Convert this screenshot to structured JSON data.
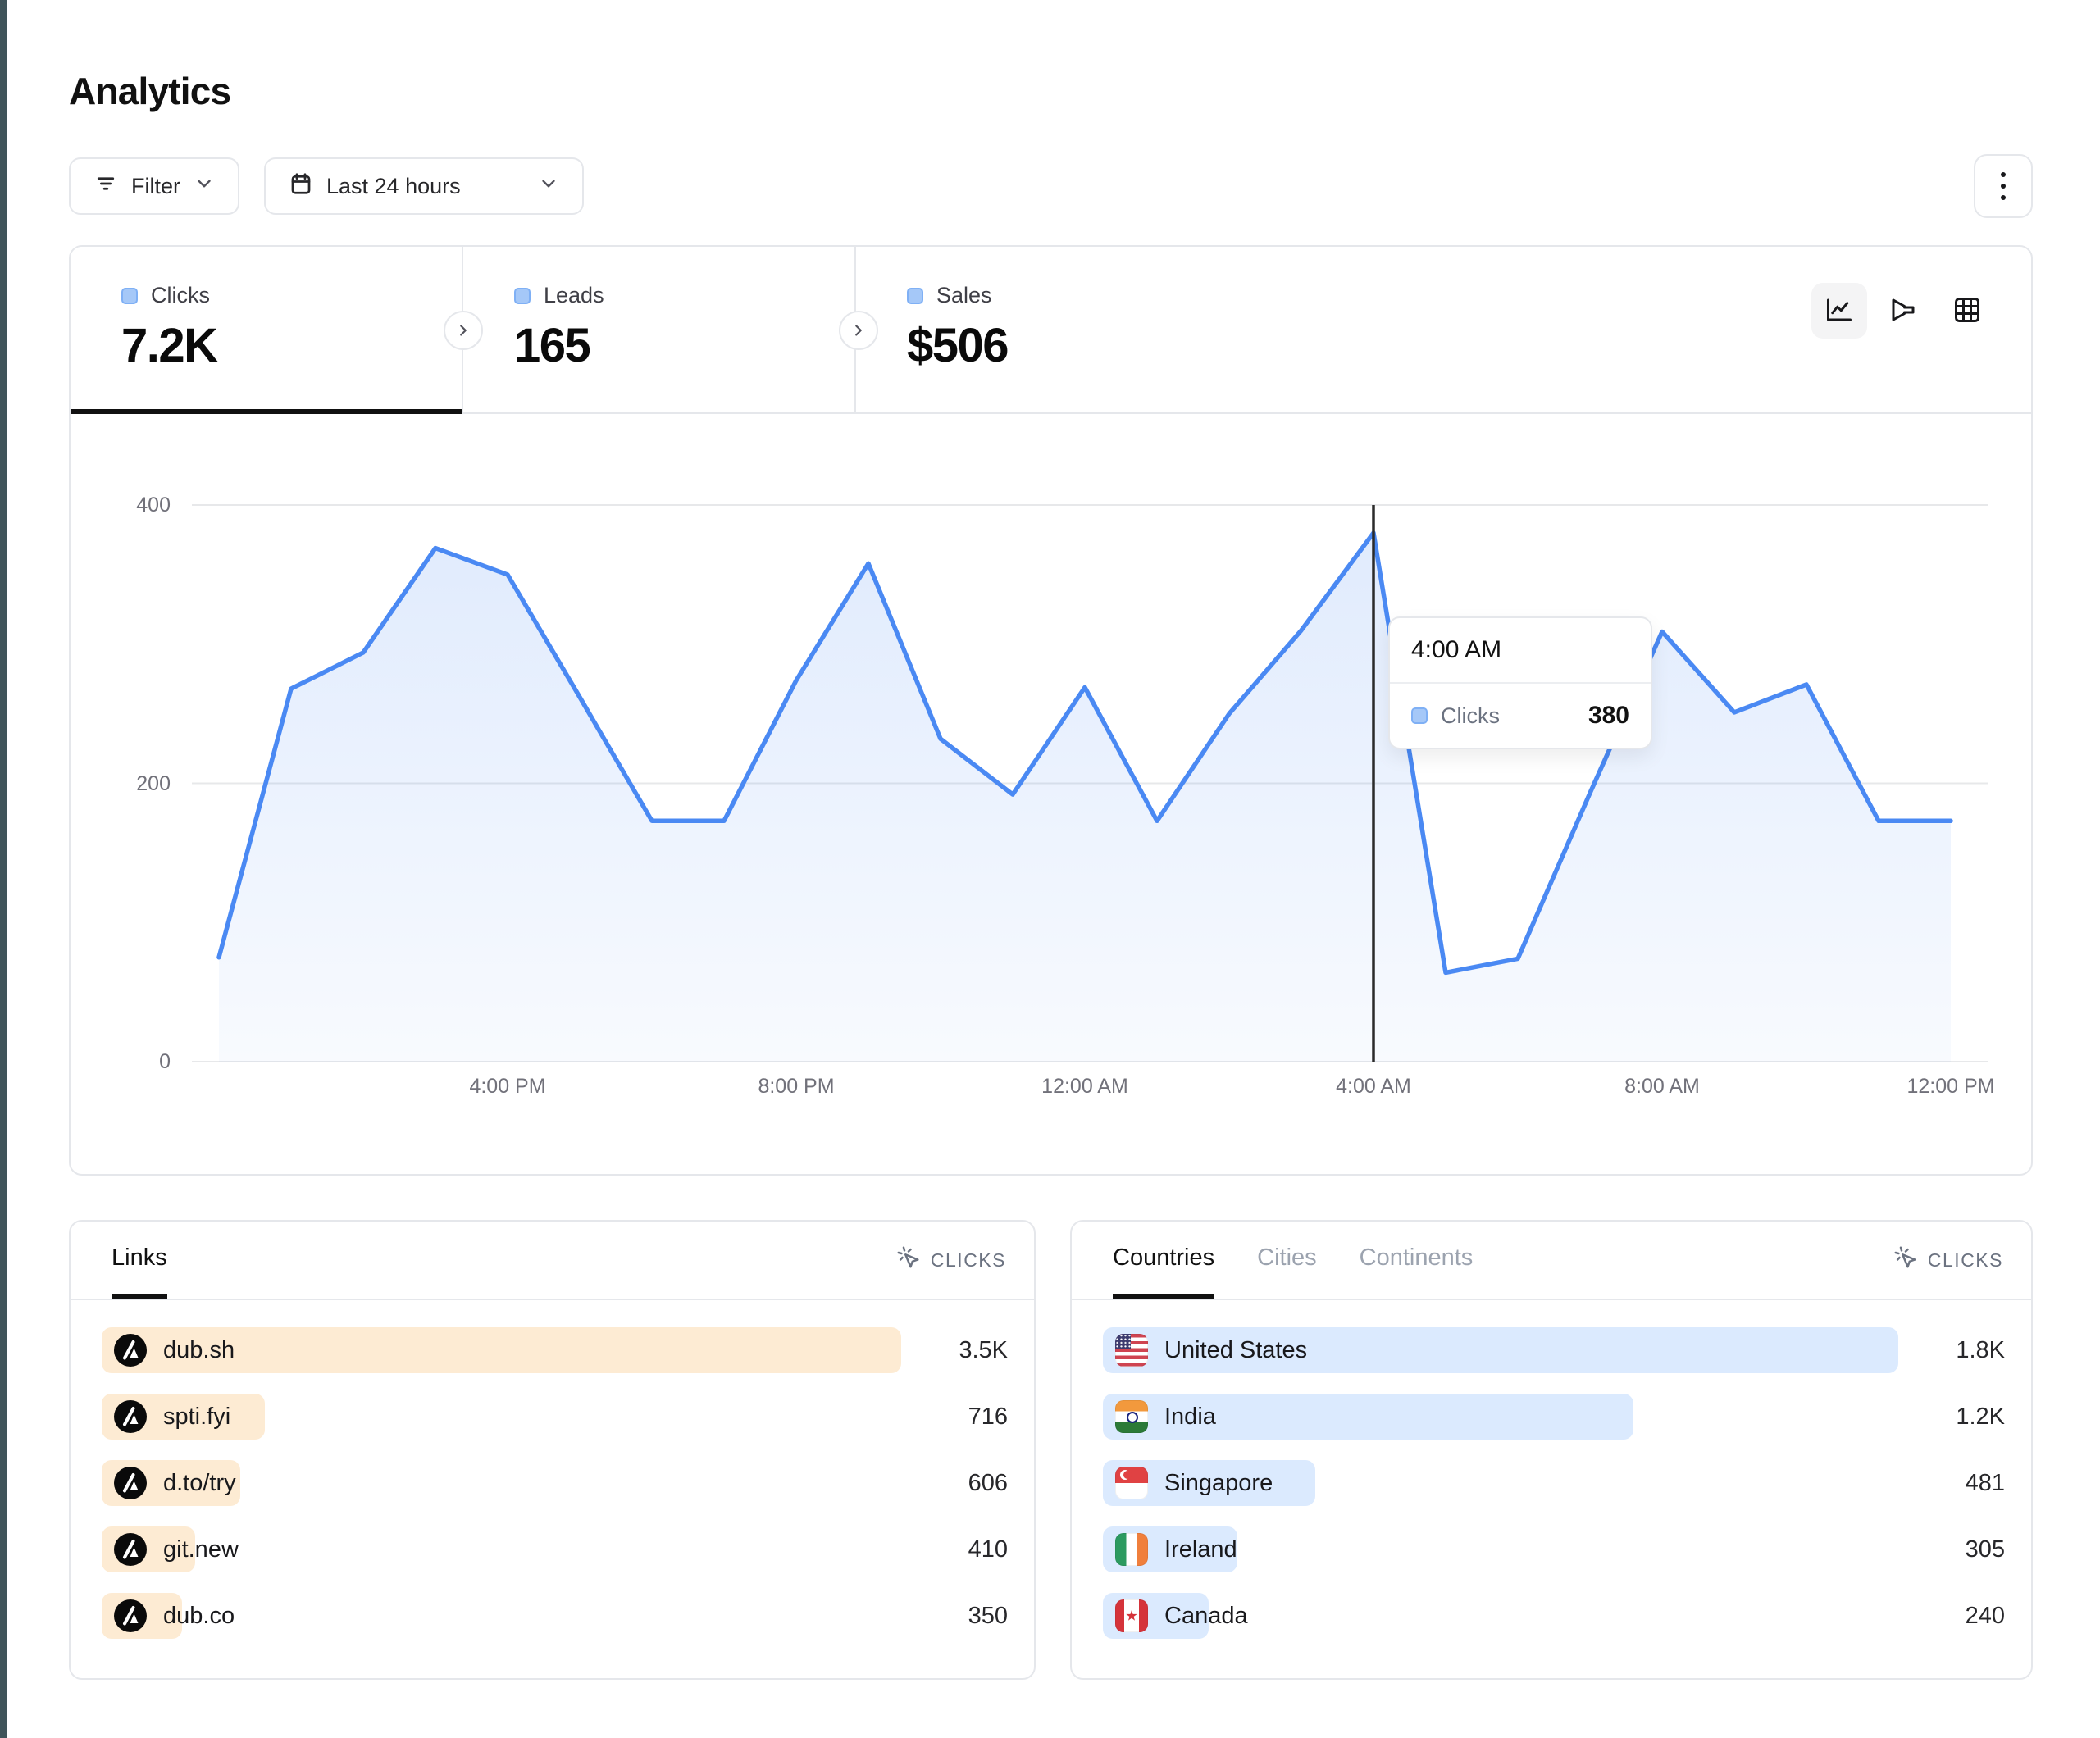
{
  "page": {
    "title": "Analytics"
  },
  "toolbar": {
    "filter": {
      "label": "Filter"
    },
    "date_range": {
      "label": "Last 24 hours"
    }
  },
  "stats": {
    "tabs": [
      {
        "label": "Clicks",
        "value": "7.2K",
        "active": true
      },
      {
        "label": "Leads",
        "value": "165",
        "active": false
      },
      {
        "label": "Sales",
        "value": "$506",
        "active": false
      }
    ]
  },
  "chart_data": {
    "type": "area",
    "series_name": "Clicks",
    "x": [
      "12:00 PM",
      "1:00 PM",
      "2:00 PM",
      "3:00 PM",
      "4:00 PM",
      "5:00 PM",
      "6:00 PM",
      "7:00 PM",
      "8:00 PM",
      "9:00 PM",
      "10:00 PM",
      "11:00 PM",
      "12:00 AM",
      "1:00 AM",
      "2:00 AM",
      "3:00 AM",
      "4:00 AM",
      "5:00 AM",
      "6:00 AM",
      "7:00 AM",
      "8:00 AM",
      "9:00 AM",
      "10:00 AM",
      "11:00 AM",
      "12:00 PM"
    ],
    "values": [
      75,
      268,
      294,
      369,
      350,
      262,
      173,
      173,
      274,
      358,
      232,
      192,
      269,
      173,
      250,
      310,
      380,
      64,
      74,
      193,
      309,
      251,
      271,
      173,
      173
    ],
    "x_tick_labels": [
      "4:00 PM",
      "8:00 PM",
      "12:00 AM",
      "4:00 AM",
      "8:00 AM",
      "12:00 PM"
    ],
    "x_tick_indices": [
      4,
      8,
      12,
      16,
      20,
      24
    ],
    "yticks": [
      400,
      200,
      0
    ],
    "ylim": [
      0,
      400
    ],
    "grid": "horizontal",
    "legend_position": "none",
    "line_color": "#4a89f3",
    "tooltip": {
      "label": "4:00 AM",
      "series": "Clicks",
      "value": 380,
      "index": 16
    }
  },
  "links_panel": {
    "title": "Links",
    "metric_label": "CLICKS",
    "bar_color": "#fdebd3",
    "items": [
      {
        "label": "dub.sh",
        "clicks": 3500,
        "display": "3.5K"
      },
      {
        "label": "spti.fyi",
        "clicks": 716,
        "display": "716"
      },
      {
        "label": "d.to/try",
        "clicks": 606,
        "display": "606"
      },
      {
        "label": "git.new",
        "clicks": 410,
        "display": "410"
      },
      {
        "label": "dub.co",
        "clicks": 350,
        "display": "350"
      }
    ]
  },
  "countries_panel": {
    "tabs": [
      "Countries",
      "Cities",
      "Continents"
    ],
    "active_tab": "Countries",
    "metric_label": "CLICKS",
    "bar_color": "#dbeafe",
    "items": [
      {
        "label": "United States",
        "flag": "us",
        "clicks": 1800,
        "display": "1.8K"
      },
      {
        "label": "India",
        "flag": "in",
        "clicks": 1200,
        "display": "1.2K"
      },
      {
        "label": "Singapore",
        "flag": "sg",
        "clicks": 481,
        "display": "481"
      },
      {
        "label": "Ireland",
        "flag": "ie",
        "clicks": 305,
        "display": "305"
      },
      {
        "label": "Canada",
        "flag": "ca",
        "clicks": 240,
        "display": "240"
      }
    ]
  },
  "colors": {
    "accent_blue": "#4a89f3",
    "links_bar": "#fdebd3",
    "countries_bar": "#dbeafe",
    "border": "#e5e7eb",
    "muted_text": "#6b7280",
    "crosshair": "#2b2b2b",
    "edge_strip": "#3f545a"
  }
}
